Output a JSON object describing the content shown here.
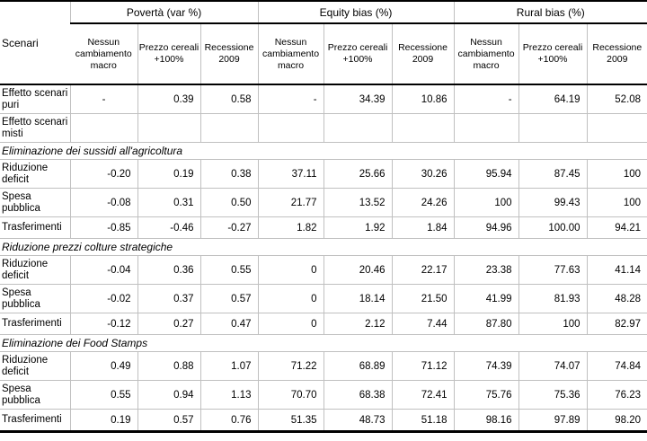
{
  "table": {
    "corner_label": "Scenari",
    "groups": [
      {
        "label": "Povertà (var %)"
      },
      {
        "label": "Equity bias (%)"
      },
      {
        "label": "Rural bias (%)"
      }
    ],
    "subheaders": [
      "Nessun cambiamento macro",
      "Prezzo cereali +100%",
      "Recessione 2009"
    ],
    "rows": [
      {
        "type": "data",
        "label": "Effetto scenari puri",
        "values": [
          "-",
          "0.39",
          "0.58",
          "-",
          "34.39",
          "10.86",
          "-",
          "64.19",
          "52.08"
        ]
      },
      {
        "type": "data",
        "label": "Effetto scenari misti",
        "values": [
          "",
          "",
          "",
          "",
          "",
          "",
          "",
          "",
          ""
        ]
      },
      {
        "type": "section",
        "label": "Eliminazione dei sussidi all'agricoltura"
      },
      {
        "type": "data",
        "label": "Riduzione deficit",
        "values": [
          "-0.20",
          "0.19",
          "0.38",
          "37.11",
          "25.66",
          "30.26",
          "95.94",
          "87.45",
          "100"
        ]
      },
      {
        "type": "data",
        "label": "Spesa pubblica",
        "values": [
          "-0.08",
          "0.31",
          "0.50",
          "21.77",
          "13.52",
          "24.26",
          "100",
          "99.43",
          "100"
        ]
      },
      {
        "type": "data",
        "label": "Trasferimenti",
        "values": [
          "-0.85",
          "-0.46",
          "-0.27",
          "1.82",
          "1.92",
          "1.84",
          "94.96",
          "100.00",
          "94.21"
        ]
      },
      {
        "type": "section",
        "label": "Riduzione prezzi colture strategiche"
      },
      {
        "type": "data",
        "label": "Riduzione deficit",
        "values": [
          "-0.04",
          "0.36",
          "0.55",
          "0",
          "20.46",
          "22.17",
          "23.38",
          "77.63",
          "41.14"
        ]
      },
      {
        "type": "data",
        "label": "Spesa pubblica",
        "values": [
          "-0.02",
          "0.37",
          "0.57",
          "0",
          "18.14",
          "21.50",
          "41.99",
          "81.93",
          "48.28"
        ]
      },
      {
        "type": "data",
        "label": "Trasferimenti",
        "values": [
          "-0.12",
          "0.27",
          "0.47",
          "0",
          "2.12",
          "7.44",
          "87.80",
          "100",
          "82.97"
        ]
      },
      {
        "type": "section",
        "label": "Eliminazione dei Food Stamps"
      },
      {
        "type": "data",
        "label": "Riduzione deficit",
        "values": [
          "0.49",
          "0.88",
          "1.07",
          "71.22",
          "68.89",
          "71.12",
          "74.39",
          "74.07",
          "74.84"
        ]
      },
      {
        "type": "data",
        "label": "Spesa pubblica",
        "values": [
          "0.55",
          "0.94",
          "1.13",
          "70.70",
          "68.38",
          "72.41",
          "75.76",
          "75.36",
          "76.23"
        ]
      },
      {
        "type": "data",
        "label": "Trasferimenti",
        "values": [
          "0.19",
          "0.57",
          "0.76",
          "51.35",
          "48.73",
          "51.18",
          "98.16",
          "97.89",
          "98.20"
        ]
      }
    ],
    "colors": {
      "strong_border": "#000000",
      "grid_line": "#c0c0c0",
      "text": "#000000",
      "background": "#ffffff"
    }
  }
}
